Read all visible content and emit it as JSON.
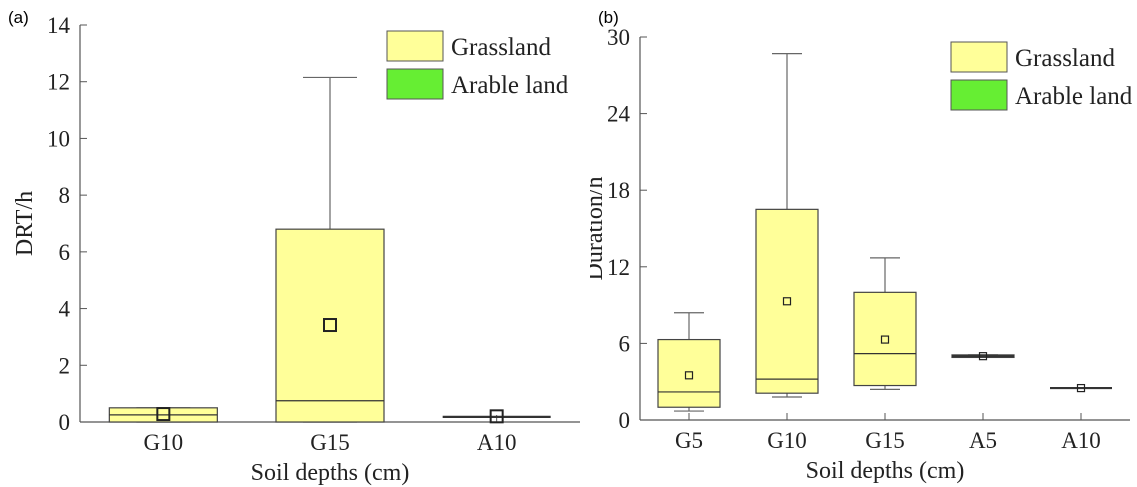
{
  "colors": {
    "grassland": "#ffff99",
    "arable": "#66ee33",
    "axis": "#555555",
    "whisker": "#666666"
  },
  "chart_data": [
    {
      "type": "boxplot",
      "panel_label": "(a)",
      "xlabel": "Soil depths (cm)",
      "ylabel": "DRT/h",
      "ylim": [
        0,
        14
      ],
      "yticks": [
        0,
        2,
        4,
        6,
        8,
        10,
        12,
        14
      ],
      "categories": [
        "G10",
        "G15",
        "A10"
      ],
      "legend": {
        "position": "top-right",
        "entries": [
          "Grassland",
          "Arable land"
        ]
      },
      "boxes": [
        {
          "category": "G10",
          "group": "Grassland",
          "min": 0,
          "q1": 0,
          "median": 0.25,
          "q3": 0.5,
          "max": 0.5,
          "mean": 0.28
        },
        {
          "category": "G15",
          "group": "Grassland",
          "min": 0,
          "q1": 0,
          "median": 0.75,
          "q3": 6.8,
          "max": 12.15,
          "mean": 3.42
        },
        {
          "category": "A10",
          "group": "Arable land",
          "min": 0.18,
          "q1": 0.18,
          "median": 0.18,
          "q3": 0.18,
          "max": 0.18,
          "mean": 0.2
        }
      ]
    },
    {
      "type": "boxplot",
      "panel_label": "(b)",
      "xlabel": "Soil depths (cm)",
      "ylabel": "Duration/h",
      "ylim": [
        0,
        30
      ],
      "yticks": [
        0,
        6,
        12,
        18,
        24,
        30
      ],
      "categories": [
        "G5",
        "G10",
        "G15",
        "A5",
        "A10"
      ],
      "legend": {
        "position": "top-right",
        "entries": [
          "Grassland",
          "Arable land"
        ]
      },
      "boxes": [
        {
          "category": "G5",
          "group": "Grassland",
          "min": 0.7,
          "q1": 1.0,
          "median": 2.2,
          "q3": 6.3,
          "max": 8.4,
          "mean": 3.5
        },
        {
          "category": "G10",
          "group": "Grassland",
          "min": 1.8,
          "q1": 2.1,
          "median": 3.2,
          "q3": 16.5,
          "max": 28.7,
          "mean": 9.3
        },
        {
          "category": "G15",
          "group": "Grassland",
          "min": 2.4,
          "q1": 2.7,
          "median": 5.2,
          "q3": 10.0,
          "max": 12.7,
          "mean": 6.3
        },
        {
          "category": "A5",
          "group": "Arable land",
          "min": 4.9,
          "q1": 4.9,
          "median": 5.0,
          "q3": 5.1,
          "max": 5.1,
          "mean": 5.0
        },
        {
          "category": "A10",
          "group": "Arable land",
          "min": 2.5,
          "q1": 2.5,
          "median": 2.5,
          "q3": 2.5,
          "max": 2.5,
          "mean": 2.5
        }
      ]
    }
  ]
}
